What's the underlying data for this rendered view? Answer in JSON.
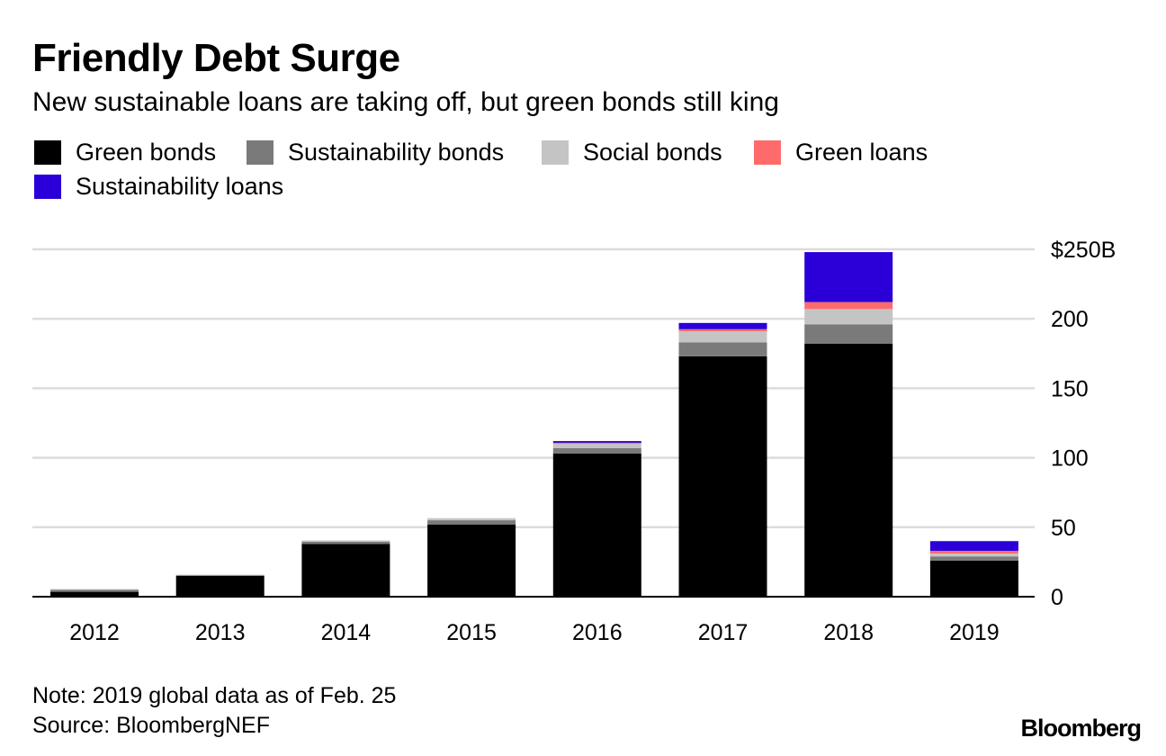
{
  "header": {
    "title": "Friendly Debt Surge",
    "subtitle": "New sustainable loans are taking off, but green bonds still king"
  },
  "footer": {
    "note": "Note: 2019 global data as of Feb. 25",
    "source": "Source: BloombergNEF",
    "logo": "Bloomberg"
  },
  "chart_data": {
    "type": "bar",
    "stacked": true,
    "title": "Friendly Debt Surge",
    "subtitle": "New sustainable loans are taking off, but green bonds still king",
    "xlabel": "",
    "ylabel": "",
    "categories": [
      "2012",
      "2013",
      "2014",
      "2015",
      "2016",
      "2017",
      "2018",
      "2019"
    ],
    "series": [
      {
        "name": "Green bonds",
        "color": "#000000",
        "values": [
          3.5,
          15,
          38,
          52,
          103,
          173,
          182,
          26
        ]
      },
      {
        "name": "Sustainability bonds",
        "color": "#7a7a7a",
        "values": [
          1.5,
          0.5,
          1.5,
          3,
          4,
          10,
          14,
          3
        ]
      },
      {
        "name": "Social bonds",
        "color": "#c4c4c4",
        "values": [
          0.5,
          0.3,
          1,
          1.5,
          3,
          8,
          11,
          2
        ]
      },
      {
        "name": "Green loans",
        "color": "#ff6b6b",
        "values": [
          0,
          0,
          0,
          0,
          0.8,
          1.5,
          5,
          2
        ]
      },
      {
        "name": "Sustainability loans",
        "color": "#2b00d8",
        "values": [
          0,
          0,
          0,
          0,
          1.2,
          4.5,
          36,
          7
        ]
      }
    ],
    "ylim": [
      0,
      250
    ],
    "yticks": [
      {
        "value": 250,
        "label": "$250B"
      },
      {
        "value": 200,
        "label": "200"
      },
      {
        "value": 150,
        "label": "150"
      },
      {
        "value": 100,
        "label": "100"
      },
      {
        "value": 50,
        "label": "50"
      },
      {
        "value": 0,
        "label": "0"
      }
    ],
    "grid": true,
    "legend_position": "top"
  }
}
